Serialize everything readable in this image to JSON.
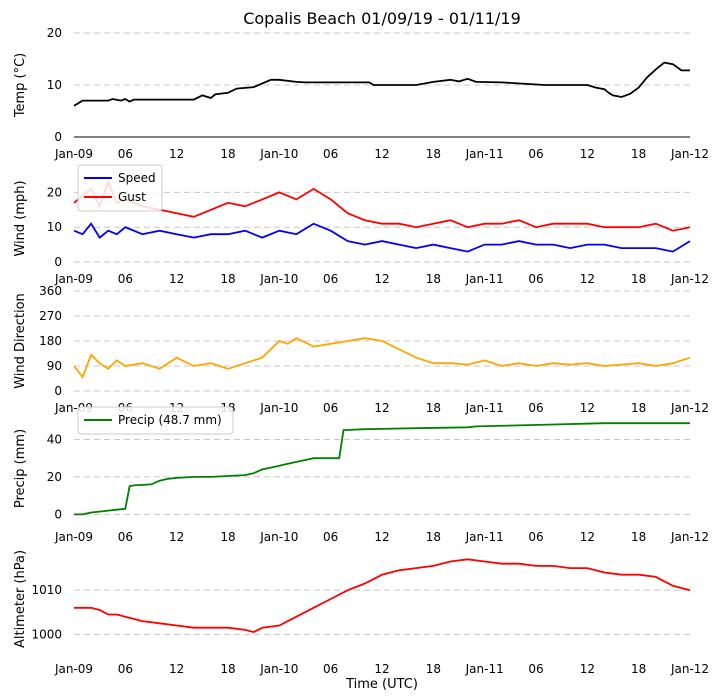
{
  "title": "Copalis Beach 01/09/19 - 01/11/19",
  "xlabel": "Time (UTC)",
  "x_ticks": [
    "Jan-09",
    "06",
    "12",
    "18",
    "Jan-10",
    "06",
    "12",
    "18",
    "Jan-11",
    "06",
    "12",
    "18",
    "Jan-12"
  ],
  "chart_data": [
    {
      "type": "line",
      "ylabel": "Temp (°C)",
      "ylim": [
        0,
        20
      ],
      "yticks": [
        0,
        10,
        20
      ],
      "x_unit": "hours since Jan-09 00:00 UTC",
      "xlim": [
        0,
        72
      ],
      "series": [
        {
          "name": "Temp",
          "color": "#000000",
          "x": [
            0,
            0.5,
            1,
            4,
            4.5,
            5.5,
            6,
            6.5,
            7,
            14,
            15,
            16,
            16.5,
            18,
            19,
            21,
            23,
            24,
            26,
            27,
            34.5,
            35,
            40,
            42,
            44,
            45,
            46,
            47,
            50,
            55,
            60,
            61,
            62,
            62.5,
            63,
            64,
            65,
            66,
            67,
            68,
            69,
            70,
            71,
            72
          ],
          "values": [
            6,
            6.5,
            7,
            7,
            7.3,
            7,
            7.3,
            6.8,
            7.2,
            7.2,
            8,
            7.5,
            8.2,
            8.5,
            9.3,
            9.6,
            11,
            11,
            10.6,
            10.5,
            10.5,
            10,
            10,
            10.6,
            11,
            10.7,
            11.2,
            10.6,
            10.5,
            10,
            10,
            9.5,
            9.2,
            8.5,
            8,
            7.7,
            8.3,
            9.5,
            11.5,
            13,
            14.3,
            14,
            12.8,
            12.8
          ]
        }
      ]
    },
    {
      "type": "line",
      "ylabel": "Wind (mph)",
      "ylim": [
        0,
        25
      ],
      "yticks": [
        0,
        10,
        20
      ],
      "legend": "top-left",
      "series": [
        {
          "name": "Speed",
          "color": "#0000ff",
          "x": [
            0,
            1,
            2,
            3,
            4,
            5,
            6,
            8,
            10,
            12,
            14,
            16,
            18,
            20,
            22,
            24,
            26,
            28,
            30,
            32,
            34,
            36,
            38,
            40,
            42,
            44,
            46,
            48,
            50,
            52,
            54,
            56,
            58,
            60,
            62,
            64,
            66,
            68,
            70,
            72
          ],
          "values": [
            9,
            8,
            11,
            7,
            9,
            8,
            10,
            8,
            9,
            8,
            7,
            8,
            8,
            9,
            7,
            9,
            8,
            11,
            9,
            6,
            5,
            6,
            5,
            4,
            5,
            4,
            3,
            5,
            5,
            6,
            5,
            5,
            4,
            5,
            5,
            4,
            4,
            4,
            3,
            6
          ]
        },
        {
          "name": "Gust",
          "color": "#ff0000",
          "x": [
            0,
            1,
            2,
            3,
            4,
            5,
            6,
            8,
            10,
            12,
            14,
            16,
            18,
            20,
            22,
            24,
            26,
            28,
            30,
            32,
            34,
            36,
            38,
            40,
            42,
            44,
            46,
            48,
            50,
            52,
            54,
            56,
            58,
            60,
            62,
            64,
            66,
            68,
            70,
            72
          ],
          "values": [
            17,
            19,
            21,
            16,
            23,
            17,
            18,
            16,
            15,
            14,
            13,
            15,
            17,
            16,
            18,
            20,
            18,
            21,
            18,
            14,
            12,
            11,
            11,
            10,
            11,
            12,
            10,
            11,
            11,
            12,
            10,
            11,
            11,
            11,
            10,
            10,
            10,
            11,
            9,
            10
          ]
        }
      ]
    },
    {
      "type": "line",
      "ylabel": "Wind Direction",
      "ylim": [
        0,
        360
      ],
      "yticks": [
        0,
        90,
        180,
        270,
        360
      ],
      "series": [
        {
          "name": "Direction",
          "color": "#ffa500",
          "x": [
            0,
            1,
            2,
            3,
            4,
            5,
            6,
            8,
            10,
            12,
            14,
            16,
            18,
            20,
            22,
            24,
            25,
            26,
            28,
            30,
            32,
            34,
            36,
            38,
            40,
            42,
            44,
            46,
            48,
            50,
            52,
            54,
            56,
            58,
            60,
            62,
            64,
            66,
            68,
            70,
            72
          ],
          "values": [
            90,
            50,
            130,
            100,
            80,
            110,
            90,
            100,
            80,
            120,
            90,
            100,
            80,
            100,
            120,
            180,
            170,
            190,
            160,
            170,
            180,
            190,
            180,
            150,
            120,
            100,
            100,
            95,
            110,
            90,
            100,
            90,
            100,
            95,
            100,
            90,
            95,
            100,
            90,
            100,
            120
          ]
        }
      ]
    },
    {
      "type": "line",
      "ylabel": "Precip (mm)",
      "ylim": [
        -3,
        52
      ],
      "yticks": [
        0,
        20,
        40
      ],
      "legend": "top-left",
      "series": [
        {
          "name": "Precip (48.7 mm)",
          "color": "#008000",
          "x": [
            0,
            1,
            2,
            3,
            4,
            5,
            6,
            6.5,
            7,
            9,
            10,
            11,
            12,
            14,
            16,
            18,
            20,
            21,
            22,
            23,
            24,
            25,
            26,
            27,
            28,
            30,
            31,
            31.5,
            34,
            40,
            46,
            47,
            56,
            62,
            72
          ],
          "values": [
            0,
            0,
            1,
            1.5,
            2,
            2.5,
            3,
            15,
            15.5,
            16,
            18,
            19,
            19.5,
            20,
            20,
            20.5,
            21,
            22,
            24,
            25,
            26,
            27,
            28,
            29,
            30,
            30,
            30,
            45,
            45.5,
            46,
            46.5,
            47,
            48,
            48.7,
            48.7
          ]
        }
      ]
    },
    {
      "type": "line",
      "ylabel": "Altimeter (hPa)",
      "ylim": [
        996,
        1020
      ],
      "yticks": [
        1000,
        1010
      ],
      "series": [
        {
          "name": "Altimeter",
          "color": "#ff0000",
          "x": [
            0,
            1,
            2,
            3,
            4,
            5,
            6,
            8,
            10,
            12,
            14,
            16,
            18,
            20,
            21,
            22,
            24,
            26,
            28,
            30,
            32,
            34,
            36,
            38,
            40,
            42,
            44,
            46,
            48,
            50,
            52,
            54,
            56,
            58,
            60,
            62,
            64,
            66,
            68,
            70,
            72
          ],
          "values": [
            1006,
            1006,
            1006,
            1005.5,
            1004.5,
            1004.5,
            1004,
            1003,
            1002.5,
            1002,
            1001.5,
            1001.5,
            1001.5,
            1001,
            1000.5,
            1001.5,
            1002,
            1004,
            1006,
            1008,
            1010,
            1011.5,
            1013.5,
            1014.5,
            1015,
            1015.5,
            1016.5,
            1017,
            1016.5,
            1016,
            1016,
            1015.5,
            1015.5,
            1015,
            1015,
            1014,
            1013.5,
            1013.5,
            1013,
            1011,
            1010
          ]
        }
      ]
    }
  ]
}
